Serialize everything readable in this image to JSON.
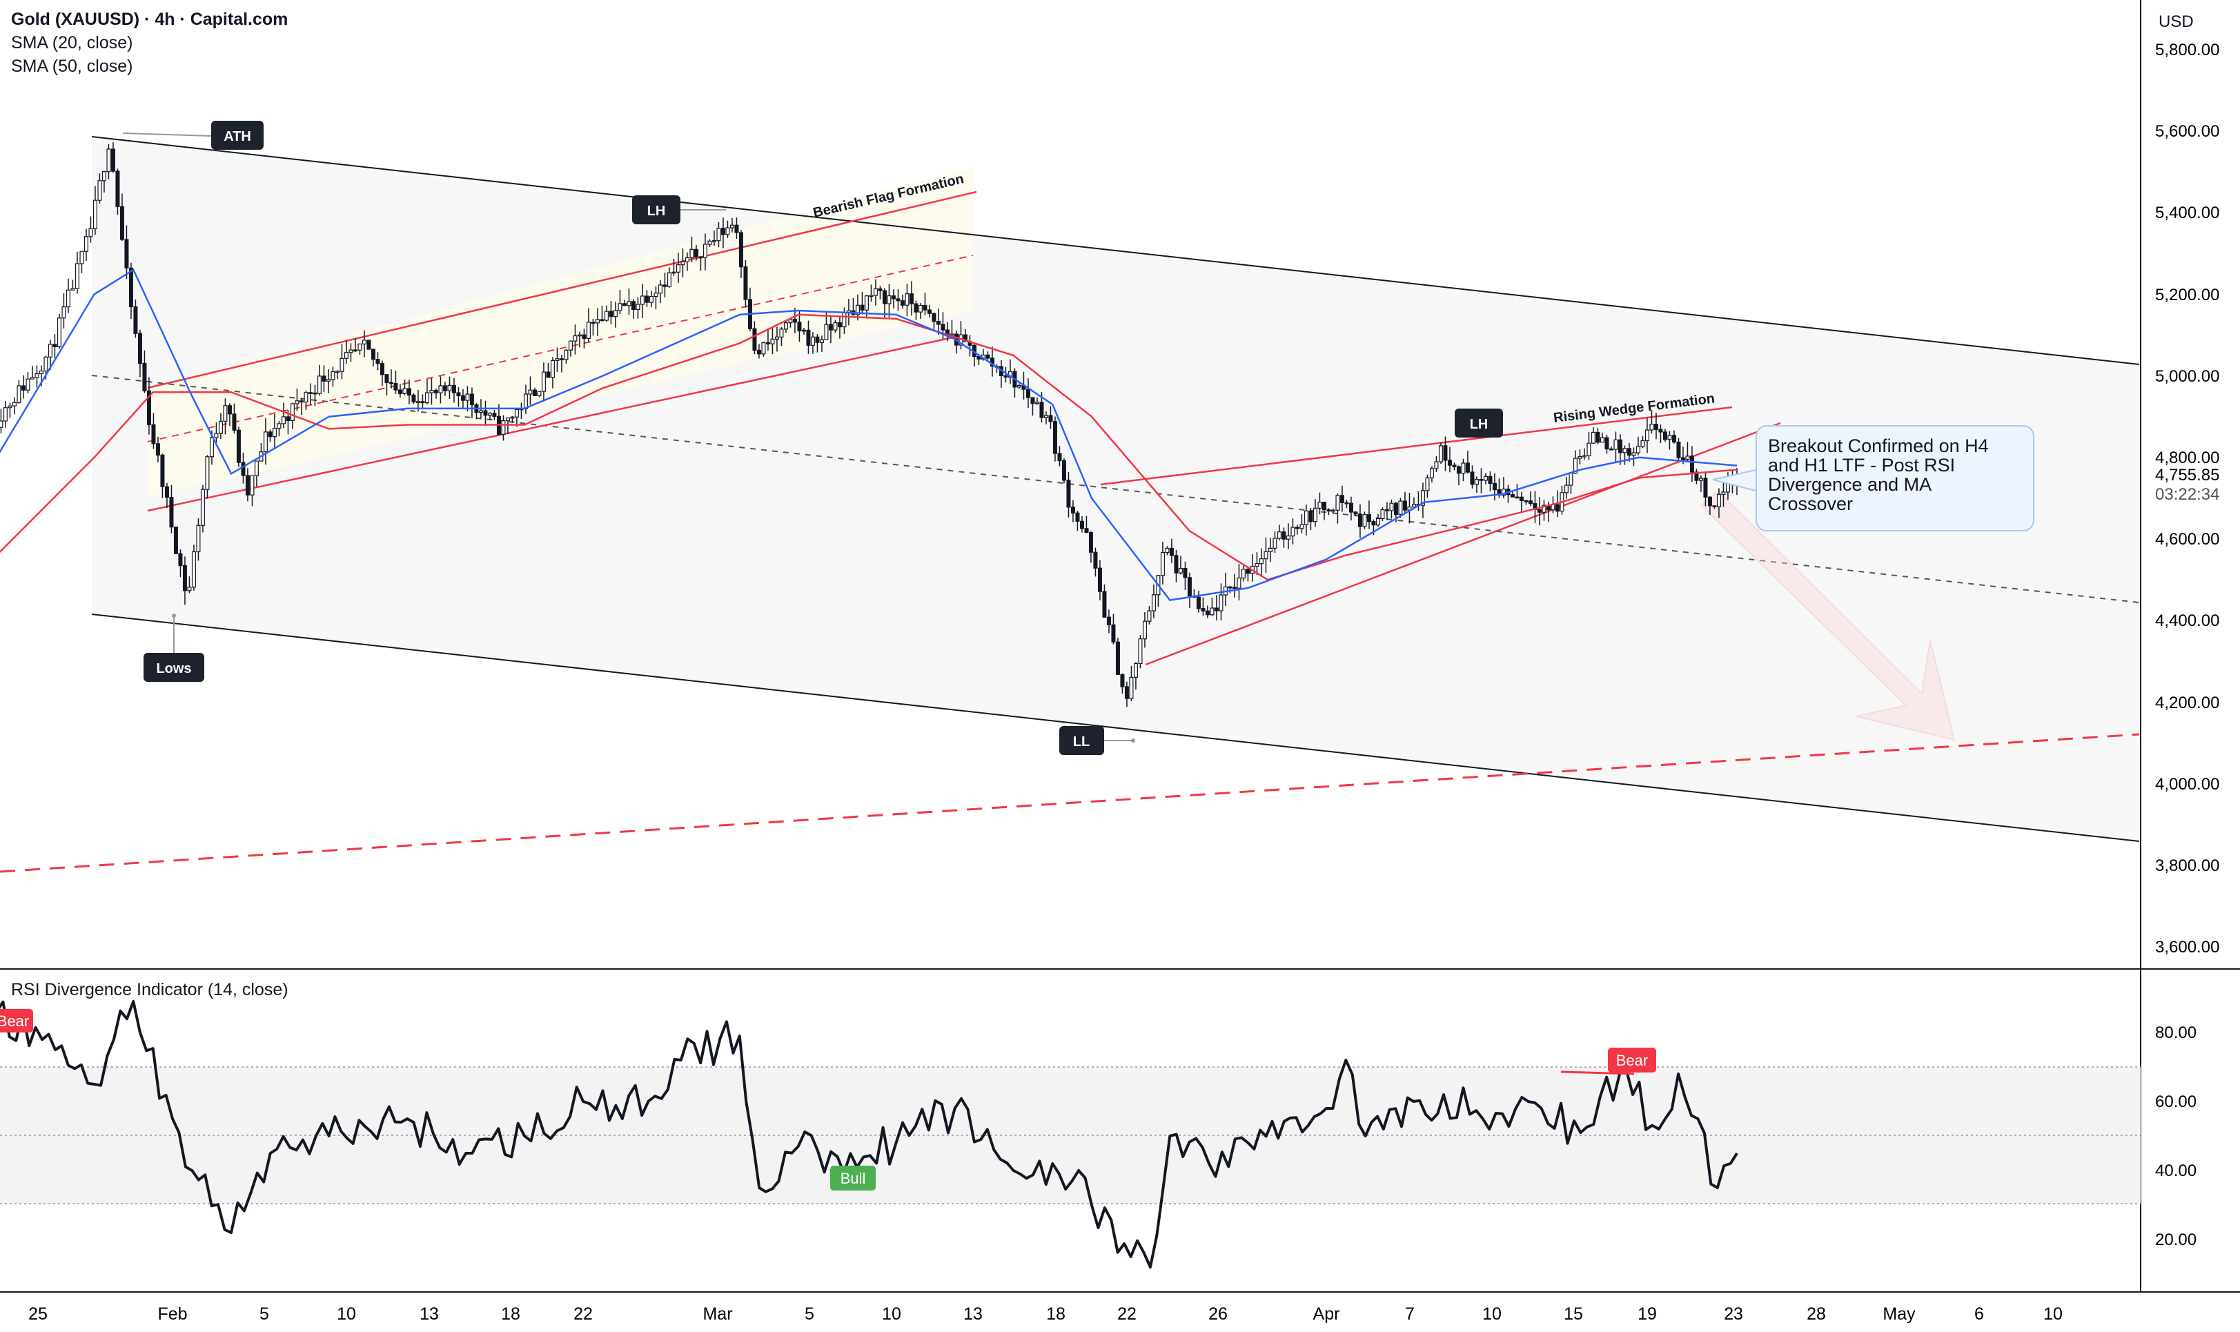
{
  "legend": {
    "title": "Gold (XAUUSD) · 4h · Capital.com",
    "sma20": "SMA (20, close)",
    "sma50": "SMA (50, close)",
    "rsi": "RSI Divergence Indicator (14, close)"
  },
  "currency": "USD",
  "price_axis": {
    "ticks": [
      "5,800.00",
      "5,600.00",
      "5,400.00",
      "5,200.00",
      "5,000.00",
      "4,800.00",
      "4,600.00",
      "4,400.00",
      "4,200.00",
      "4,000.00",
      "3,800.00",
      "3,600.00"
    ],
    "last_price": "4,755.85",
    "countdown": "03:22:34"
  },
  "rsi_axis": {
    "ticks": [
      "80.00",
      "60.00",
      "40.00",
      "20.00"
    ]
  },
  "time_axis": [
    "25",
    "Feb",
    "5",
    "10",
    "13",
    "18",
    "22",
    "Mar",
    "5",
    "10",
    "13",
    "18",
    "22",
    "26",
    "Apr",
    "7",
    "10",
    "15",
    "19",
    "23",
    "28",
    "May",
    "6",
    "10"
  ],
  "annotations": {
    "ath": "ATH",
    "lh_1": "LH",
    "lh_2": "LH",
    "ll": "LL",
    "lows": "Lows",
    "bearish_flag": "Bearish Flag Formation",
    "rising_wedge": "Rising Wedge Formation",
    "callout": "Breakout Confirmed on H4\nand H1 LTF - Post RSI\nDivergence and MA\nCrossover"
  },
  "rsi_signals": {
    "bear_1": "Bear",
    "bear_2": "Bear",
    "bull": "Bull"
  },
  "colors": {
    "candle": "#131722",
    "sma20": "#2962ff",
    "sma50": "#f23645",
    "channel": "#131722",
    "pattern": "#f23645",
    "bear_label": "#f23645",
    "bull_label": "#4caf50",
    "callout_border": "#a9c7f0"
  },
  "chart_data": [
    {
      "type": "candlestick",
      "timeframe": "4h",
      "symbol": "XAUUSD",
      "ylim": [
        3550,
        5840
      ],
      "last_price": 4755.85,
      "price_path": [
        [
          "Jan 23",
          4880
        ],
        [
          "Jan 26",
          5060
        ],
        [
          "Jan 28",
          5350
        ],
        [
          "Jan 29",
          5580
        ],
        [
          "Jan 30",
          5200
        ],
        [
          "Jan 31",
          4900
        ],
        [
          "Feb 2",
          4450
        ],
        [
          "Feb 3",
          4800
        ],
        [
          "Feb 4",
          4950
        ],
        [
          "Feb 5",
          4700
        ],
        [
          "Feb 6",
          4850
        ],
        [
          "Feb 9",
          5000
        ],
        [
          "Feb 11",
          5070
        ],
        [
          "Feb 13",
          4950
        ],
        [
          "Feb 16",
          4960
        ],
        [
          "Feb 18",
          4870
        ],
        [
          "Feb 20",
          4980
        ],
        [
          "Feb 23",
          5150
        ],
        [
          "Feb 25",
          5180
        ],
        [
          "Feb 27",
          5260
        ],
        [
          "Mar 2",
          5380
        ],
        [
          "Mar 3",
          5050
        ],
        [
          "Mar 5",
          5130
        ],
        [
          "Mar 6",
          5080
        ],
        [
          "Mar 9",
          5200
        ],
        [
          "Mar 11",
          5180
        ],
        [
          "Mar 13",
          5100
        ],
        [
          "Mar 16",
          5000
        ],
        [
          "Mar 18",
          4900
        ],
        [
          "Mar 19",
          4700
        ],
        [
          "Mar 20",
          4600
        ],
        [
          "Mar 21",
          4400
        ],
        [
          "Mar 22",
          4200
        ],
        [
          "Mar 23",
          4400
        ],
        [
          "Mar 24",
          4580
        ],
        [
          "Mar 26",
          4400
        ],
        [
          "Mar 28",
          4520
        ],
        [
          "Mar 31",
          4650
        ],
        [
          "Apr 2",
          4700
        ],
        [
          "Apr 3",
          4640
        ],
        [
          "Apr 6",
          4700
        ],
        [
          "Apr 7",
          4820
        ],
        [
          "Apr 9",
          4740
        ],
        [
          "Apr 13",
          4670
        ],
        [
          "Apr 14",
          4800
        ],
        [
          "Apr 15",
          4850
        ],
        [
          "Apr 17",
          4800
        ],
        [
          "Apr 18",
          4880
        ],
        [
          "Apr 20",
          4770
        ],
        [
          "Apr 21",
          4680
        ],
        [
          "Apr 22",
          4755.85
        ]
      ],
      "sma20": [
        [
          "Jan 23",
          4800
        ],
        [
          "Jan 28",
          5200
        ],
        [
          "Jan 30",
          5260
        ],
        [
          "Feb 2",
          4950
        ],
        [
          "Feb 4",
          4760
        ],
        [
          "Feb 9",
          4900
        ],
        [
          "Feb 13",
          4920
        ],
        [
          "Feb 19",
          4920
        ],
        [
          "Feb 23",
          5000
        ],
        [
          "Mar 2",
          5150
        ],
        [
          "Mar 5",
          5160
        ],
        [
          "Mar 10",
          5150
        ],
        [
          "Mar 13",
          5090
        ],
        [
          "Mar 18",
          4930
        ],
        [
          "Mar 20",
          4700
        ],
        [
          "Mar 24",
          4450
        ],
        [
          "Mar 28",
          4480
        ],
        [
          "Apr 1",
          4550
        ],
        [
          "Apr 6",
          4690
        ],
        [
          "Apr 10",
          4710
        ],
        [
          "Apr 14",
          4770
        ],
        [
          "Apr 17",
          4800
        ],
        [
          "Apr 22",
          4780
        ]
      ],
      "sma50": [
        [
          "Jan 23",
          4560
        ],
        [
          "Jan 28",
          4800
        ],
        [
          "Jan 31",
          4960
        ],
        [
          "Feb 4",
          4960
        ],
        [
          "Feb 9",
          4870
        ],
        [
          "Feb 13",
          4880
        ],
        [
          "Feb 19",
          4880
        ],
        [
          "Feb 23",
          4970
        ],
        [
          "Mar 2",
          5080
        ],
        [
          "Mar 5",
          5150
        ],
        [
          "Mar 10",
          5140
        ],
        [
          "Mar 16",
          5050
        ],
        [
          "Mar 20",
          4900
        ],
        [
          "Mar 25",
          4620
        ],
        [
          "Mar 29",
          4500
        ],
        [
          "Apr 2",
          4560
        ],
        [
          "Apr 8",
          4630
        ],
        [
          "Apr 13",
          4690
        ],
        [
          "Apr 17",
          4750
        ],
        [
          "Apr 22",
          4770
        ]
      ],
      "levels": {
        "ath": 5600,
        "lower_high_1": 5400,
        "lower_high_2": 4860,
        "lower_low": 4110,
        "lows": 4410
      }
    },
    {
      "type": "line",
      "name": "RSI Divergence Indicator (14, close)",
      "ylim": [
        10,
        90
      ],
      "bands": [
        30,
        50,
        70
      ],
      "x": [
        "Jan 23",
        "Jan 26",
        "Jan 28",
        "Jan 29",
        "Jan 30",
        "Feb 1",
        "Feb 2",
        "Feb 4",
        "Feb 6",
        "Feb 9",
        "Feb 13",
        "Feb 16",
        "Feb 19",
        "Feb 22",
        "Feb 24",
        "Feb 27",
        "Mar 2",
        "Mar 3",
        "Mar 5",
        "Mar 7",
        "Mar 10",
        "Mar 13",
        "Mar 16",
        "Mar 18",
        "Mar 20",
        "Mar 22",
        "Mar 23",
        "Mar 24",
        "Mar 26",
        "Mar 28",
        "Apr 1",
        "Apr 2",
        "Apr 3",
        "Apr 7",
        "Apr 9",
        "Apr 12",
        "Apr 14",
        "Apr 16",
        "Apr 18",
        "Apr 19",
        "Apr 20",
        "Apr 21",
        "Apr 22"
      ],
      "values": [
        86,
        75,
        65,
        78,
        89,
        55,
        40,
        22,
        45,
        50,
        55,
        45,
        50,
        60,
        55,
        72,
        79,
        35,
        47,
        44,
        48,
        58,
        40,
        42,
        30,
        15,
        12,
        50,
        42,
        48,
        58,
        72,
        50,
        62,
        55,
        58,
        51,
        68,
        52,
        68,
        55,
        35,
        45
      ],
      "signals": [
        {
          "label": "Bear",
          "x": "Jan 23",
          "y": 86
        },
        {
          "label": "Bull",
          "x": "Mar 7",
          "y": 40
        },
        {
          "label": "Bear",
          "x": "Apr 18",
          "y": 68
        }
      ]
    }
  ]
}
